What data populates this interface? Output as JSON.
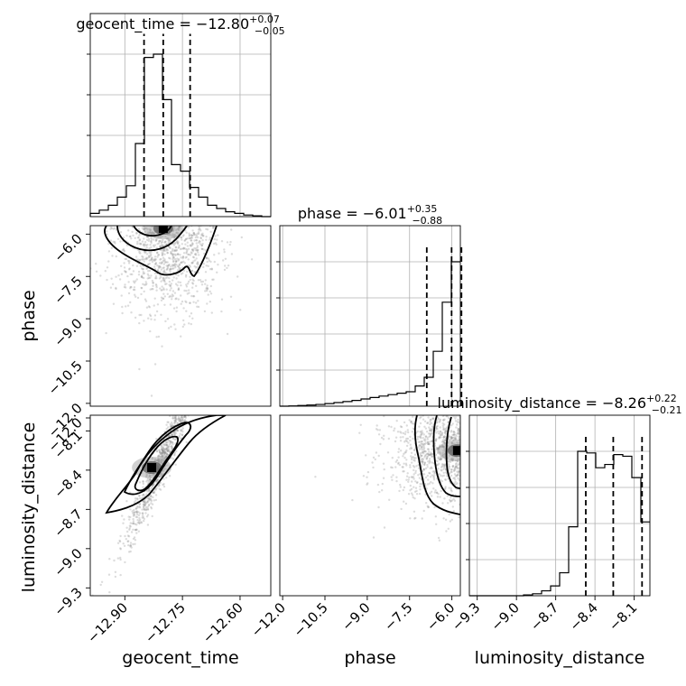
{
  "chart_data": {
    "type": "corner",
    "parameters": [
      "geocent_time",
      "phase",
      "luminosity_distance"
    ],
    "titles": [
      {
        "param": "geocent_time",
        "label": "geocent_time = ",
        "median": "−12.80",
        "plus": "+0.07",
        "minus": "−0.05"
      },
      {
        "param": "phase",
        "label": "phase = ",
        "median": "−6.01",
        "plus": "+0.35",
        "minus": "−0.88"
      },
      {
        "param": "luminosity_distance",
        "label": "luminosity_distance = ",
        "median": "−8.26",
        "plus": "+0.22",
        "minus": "−0.21"
      }
    ],
    "axis_labels": {
      "x": [
        "geocent_time",
        "phase",
        "luminosity_distance"
      ],
      "y": [
        "phase",
        "luminosity_distance"
      ]
    },
    "ranges": {
      "geocent_time": [
        -12.99,
        -12.52
      ],
      "phase": [
        -12.1,
        -5.7
      ],
      "luminosity_distance": [
        -9.36,
        -7.98
      ]
    },
    "ticks": {
      "geocent_time": {
        "values": [
          -12.9,
          -12.75,
          -12.6
        ],
        "labels": [
          "−12.90",
          "−12.75",
          "−12.60"
        ]
      },
      "phase": {
        "values": [
          -12.0,
          -10.5,
          -9.0,
          -7.5,
          -6.0
        ],
        "labels": [
          "−12.0",
          "−10.5",
          "−9.0",
          "−7.5",
          "−6.0"
        ]
      },
      "luminosity_distance": {
        "values": [
          -9.3,
          -9.0,
          -8.7,
          -8.4,
          -8.1
        ],
        "labels": [
          "−9.3",
          "−9.0",
          "−8.7",
          "−8.4",
          "−8.1"
        ]
      },
      "luminosity_distance_y": {
        "values": [
          -12.0,
          -8.1,
          -8.4,
          -8.7,
          -9.0,
          -9.3
        ],
        "labels": [
          "−12.0",
          "−8.1",
          "−8.4",
          "−8.7",
          "−9.0",
          "−9.3"
        ]
      }
    },
    "histograms": {
      "geocent_time": {
        "edges": [
          -12.99,
          -12.9665,
          -12.943,
          -12.9195,
          -12.896,
          -12.8725,
          -12.849,
          -12.8255,
          -12.802,
          -12.7785,
          -12.755,
          -12.7315,
          -12.708,
          -12.6845,
          -12.661,
          -12.6375,
          -12.614,
          -12.5905,
          -12.567,
          -12.5435,
          -12.52
        ],
        "counts": [
          0.02,
          0.04,
          0.07,
          0.12,
          0.19,
          0.45,
          0.98,
          1.0,
          0.72,
          0.32,
          0.28,
          0.18,
          0.12,
          0.07,
          0.05,
          0.03,
          0.02,
          0.01,
          0.005,
          0.0
        ],
        "quantiles": [
          -12.85,
          -12.8,
          -12.73
        ]
      },
      "phase": {
        "edges": [
          -12.1,
          -11.78,
          -11.46,
          -11.14,
          -10.82,
          -10.5,
          -10.18,
          -9.86,
          -9.54,
          -9.22,
          -8.9,
          -8.58,
          -8.26,
          -7.94,
          -7.62,
          -7.3,
          -6.98,
          -6.66,
          -6.34,
          -6.02,
          -5.7
        ],
        "counts": [
          0.0,
          0.002,
          0.005,
          0.008,
          0.012,
          0.018,
          0.025,
          0.032,
          0.04,
          0.05,
          0.06,
          0.07,
          0.08,
          0.09,
          0.1,
          0.14,
          0.2,
          0.38,
          0.72,
          1.0
        ],
        "quantiles": [
          -6.89,
          -6.01,
          -5.66
        ]
      },
      "luminosity_distance": {
        "edges": [
          -9.36,
          -9.291,
          -9.222,
          -9.153,
          -9.084,
          -9.015,
          -8.946,
          -8.877,
          -8.808,
          -8.739,
          -8.67,
          -8.601,
          -8.532,
          -8.463,
          -8.394,
          -8.325,
          -8.256,
          -8.187,
          -8.118,
          -8.049,
          -7.98
        ],
        "counts": [
          0.0,
          0.0,
          0.0,
          0.0,
          0.0,
          0.0,
          0.005,
          0.012,
          0.03,
          0.06,
          0.14,
          0.42,
          0.88,
          0.87,
          0.78,
          0.8,
          0.86,
          0.85,
          0.72,
          0.45
        ],
        "quantiles": [
          -8.47,
          -8.26,
          -8.04
        ]
      }
    },
    "sample_clouds": [
      {
        "panel": "phase_vs_geocent_time",
        "x_param": "geocent_time",
        "y_param": "phase",
        "x_center": -12.79,
        "x_spread": 0.07,
        "y_center": -6.6,
        "y_spread": 1.5,
        "points": 1000
      },
      {
        "panel": "luminosity_distance_vs_geocent_time",
        "x_param": "geocent_time",
        "y_param": "luminosity_distance",
        "x_center": -12.8,
        "x_spread": 0.05,
        "y_center": -8.3,
        "y_spread": 0.2,
        "points": 1000
      },
      {
        "panel": "luminosity_distance_vs_phase",
        "x_param": "phase",
        "y_param": "luminosity_distance",
        "x_center": -6.3,
        "x_spread": 1.2,
        "y_center": -8.25,
        "y_spread": 0.22,
        "points": 1000
      }
    ],
    "density_peaks": [
      {
        "panel": "phase_vs_geocent_time",
        "x": -12.8,
        "y": -5.8
      },
      {
        "panel": "luminosity_distance_vs_geocent_time",
        "x": -12.83,
        "y": -8.38
      },
      {
        "panel": "luminosity_distance_vs_phase",
        "x": -5.8,
        "y": -8.25
      }
    ],
    "grid": true
  }
}
